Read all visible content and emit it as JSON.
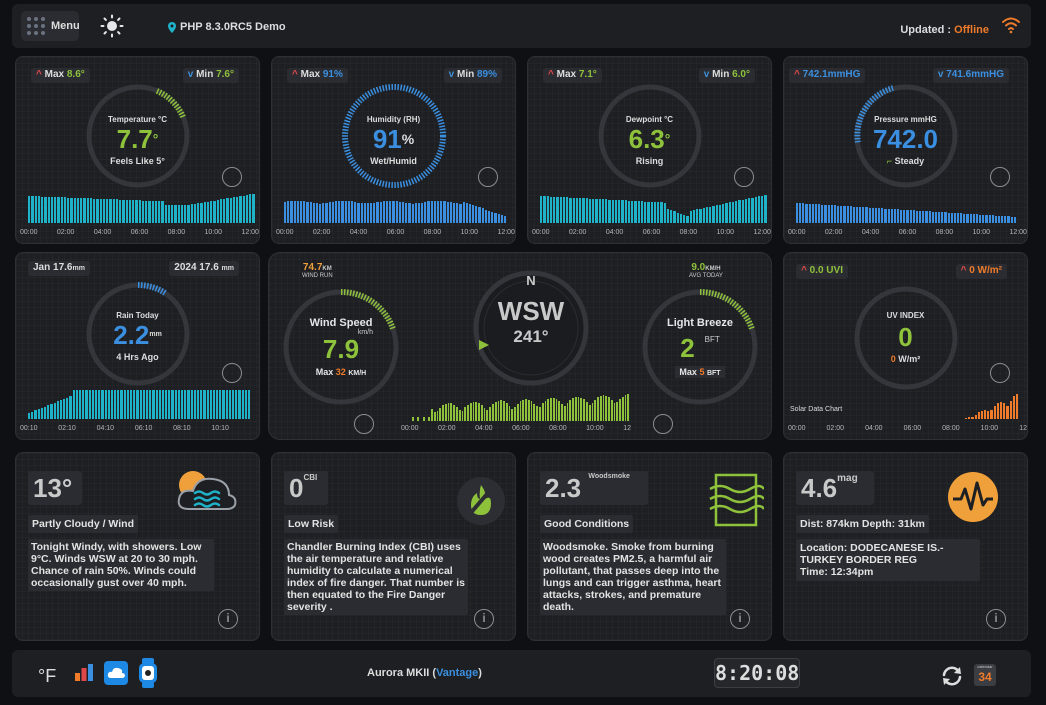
{
  "header": {
    "menu_label": "Menu",
    "app_title": "PHP 8.3.0RC5 Demo",
    "updated_label": "Updated :",
    "updated_status": "Offline"
  },
  "temperature": {
    "max_label": "Max",
    "max": "8.6°",
    "min_label": "Min",
    "min": "7.6°",
    "title": "Temperature °C",
    "value": "7.7",
    "deg": "°",
    "feels": "Feels Like 5°",
    "chart_ticks": [
      "00:00",
      "02:00",
      "04:00",
      "06:00",
      "08:00",
      "10:00",
      "12:00"
    ]
  },
  "humidity": {
    "max_label": "Max",
    "max": "91%",
    "min_label": "Min",
    "min": "89%",
    "title": "Humidity (RH)",
    "value": "91",
    "unit": "%",
    "status": "Wet/Humid",
    "chart_ticks": [
      "00:00",
      "02:00",
      "04:00",
      "06:00",
      "08:00",
      "10:00",
      "12:00"
    ]
  },
  "dewpoint": {
    "max_label": "Max",
    "max": "7.1°",
    "min_label": "Min",
    "min": "6.0°",
    "title": "Dewpoint °C",
    "value": "6.3",
    "deg": "°",
    "status": "Rising",
    "chart_ticks": [
      "00:00",
      "02:00",
      "04:00",
      "06:00",
      "08:00",
      "10:00",
      "12:00"
    ]
  },
  "pressure": {
    "max": "742.1mmHG",
    "min": "741.6mmHG",
    "title": "Pressure mmHG",
    "value": "742.0",
    "trend": "Steady",
    "chart_ticks": [
      "00:00",
      "02:00",
      "04:00",
      "06:00",
      "08:00",
      "10:00",
      "12:00"
    ]
  },
  "rain": {
    "month_label": "Jan",
    "month_value": "17.6",
    "month_unit": "mm",
    "year_label": "2024",
    "year_value": "17.6",
    "year_unit": "mm",
    "title": "Rain Today",
    "value": "2.2",
    "unit": "mm",
    "ago": "4 Hrs Ago",
    "chart_ticks": [
      "00:10",
      "02:10",
      "04:10",
      "06:10",
      "08:10",
      "10:10"
    ]
  },
  "wind": {
    "run_value": "74.7",
    "run_unit": "KM",
    "run_label": "WIND RUN",
    "speed_title": "Wind Speed",
    "speed_unit": "km/h",
    "speed_value": "7.9",
    "max_label": "Max",
    "max_value": "32",
    "max_unit": "KM/H",
    "compass_n": "N",
    "direction": "WSW",
    "degrees": "241°",
    "avg_value": "9.0",
    "avg_unit": "KM/H",
    "avg_label": "AVG TODAY",
    "beaufort_title": "Light Breeze",
    "beaufort_value": "2",
    "beaufort_unit": "BFT",
    "bmax_label": "Max",
    "bmax_value": "5",
    "bmax_unit": "BFT",
    "chart_ticks": [
      "00:00",
      "02:00",
      "04:00",
      "06:00",
      "08:00",
      "10:00",
      "12"
    ]
  },
  "uv": {
    "uvi": "0.0 UVI",
    "solar": "0 W/m²",
    "title": "UV INDEX",
    "value": "0",
    "solar_value": "0",
    "solar_unit": "W/m²",
    "chart_label": "Solar Data Chart",
    "chart_ticks": [
      "00:00",
      "02:00",
      "04:00",
      "06:00",
      "08:00",
      "10:00",
      "12"
    ]
  },
  "forecast": {
    "temp": "13°",
    "condition": "Partly Cloudy / Wind",
    "text": "Tonight Windy, with showers. Low 9°C. Winds WSW at 20 to 30 mph. Chance of rain 50%. Winds could occasionally gust over 40 mph."
  },
  "cbi": {
    "value": "0",
    "unit": "CBI",
    "risk": "Low Risk",
    "text": "Chandler Burning Index (CBI) uses the air temperature and relative humidity to calculate a numerical index of fire danger. That number is then equated to the Fire Danger severity ."
  },
  "woodsmoke": {
    "value": "2.3",
    "unit": "Woodsmoke",
    "condition": "Good Conditions",
    "text": "Woodsmoke. Smoke from burning wood creates PM2.5, a harmful air pollutant, that passes deep into the lungs and can trigger asthma, heart attacks, strokes, and premature death."
  },
  "quake": {
    "value": "4.6",
    "unit": "mag",
    "dist": "Dist: 874km Depth: 31km",
    "location": "Location: DODECANESE IS.-TURKEY BORDER REG",
    "time": "Time: 12:34pm"
  },
  "footer": {
    "unit_toggle": "°F",
    "station_name": "Aurora MKII (",
    "station_link": "Vantage",
    "station_close": ")",
    "clock": "8:20:08",
    "calendar_day": "34"
  },
  "colors": {
    "temp": "#8fc23b",
    "humidity": "#3b8fe0",
    "dewpoint": "#8fc23b",
    "pressure": "#3b8fe0",
    "rain": "#3b8fe0",
    "wind": "#8fc23b",
    "uv": "#8fc23b",
    "teal": "#1fb3c9",
    "orange": "#f07b2a"
  }
}
